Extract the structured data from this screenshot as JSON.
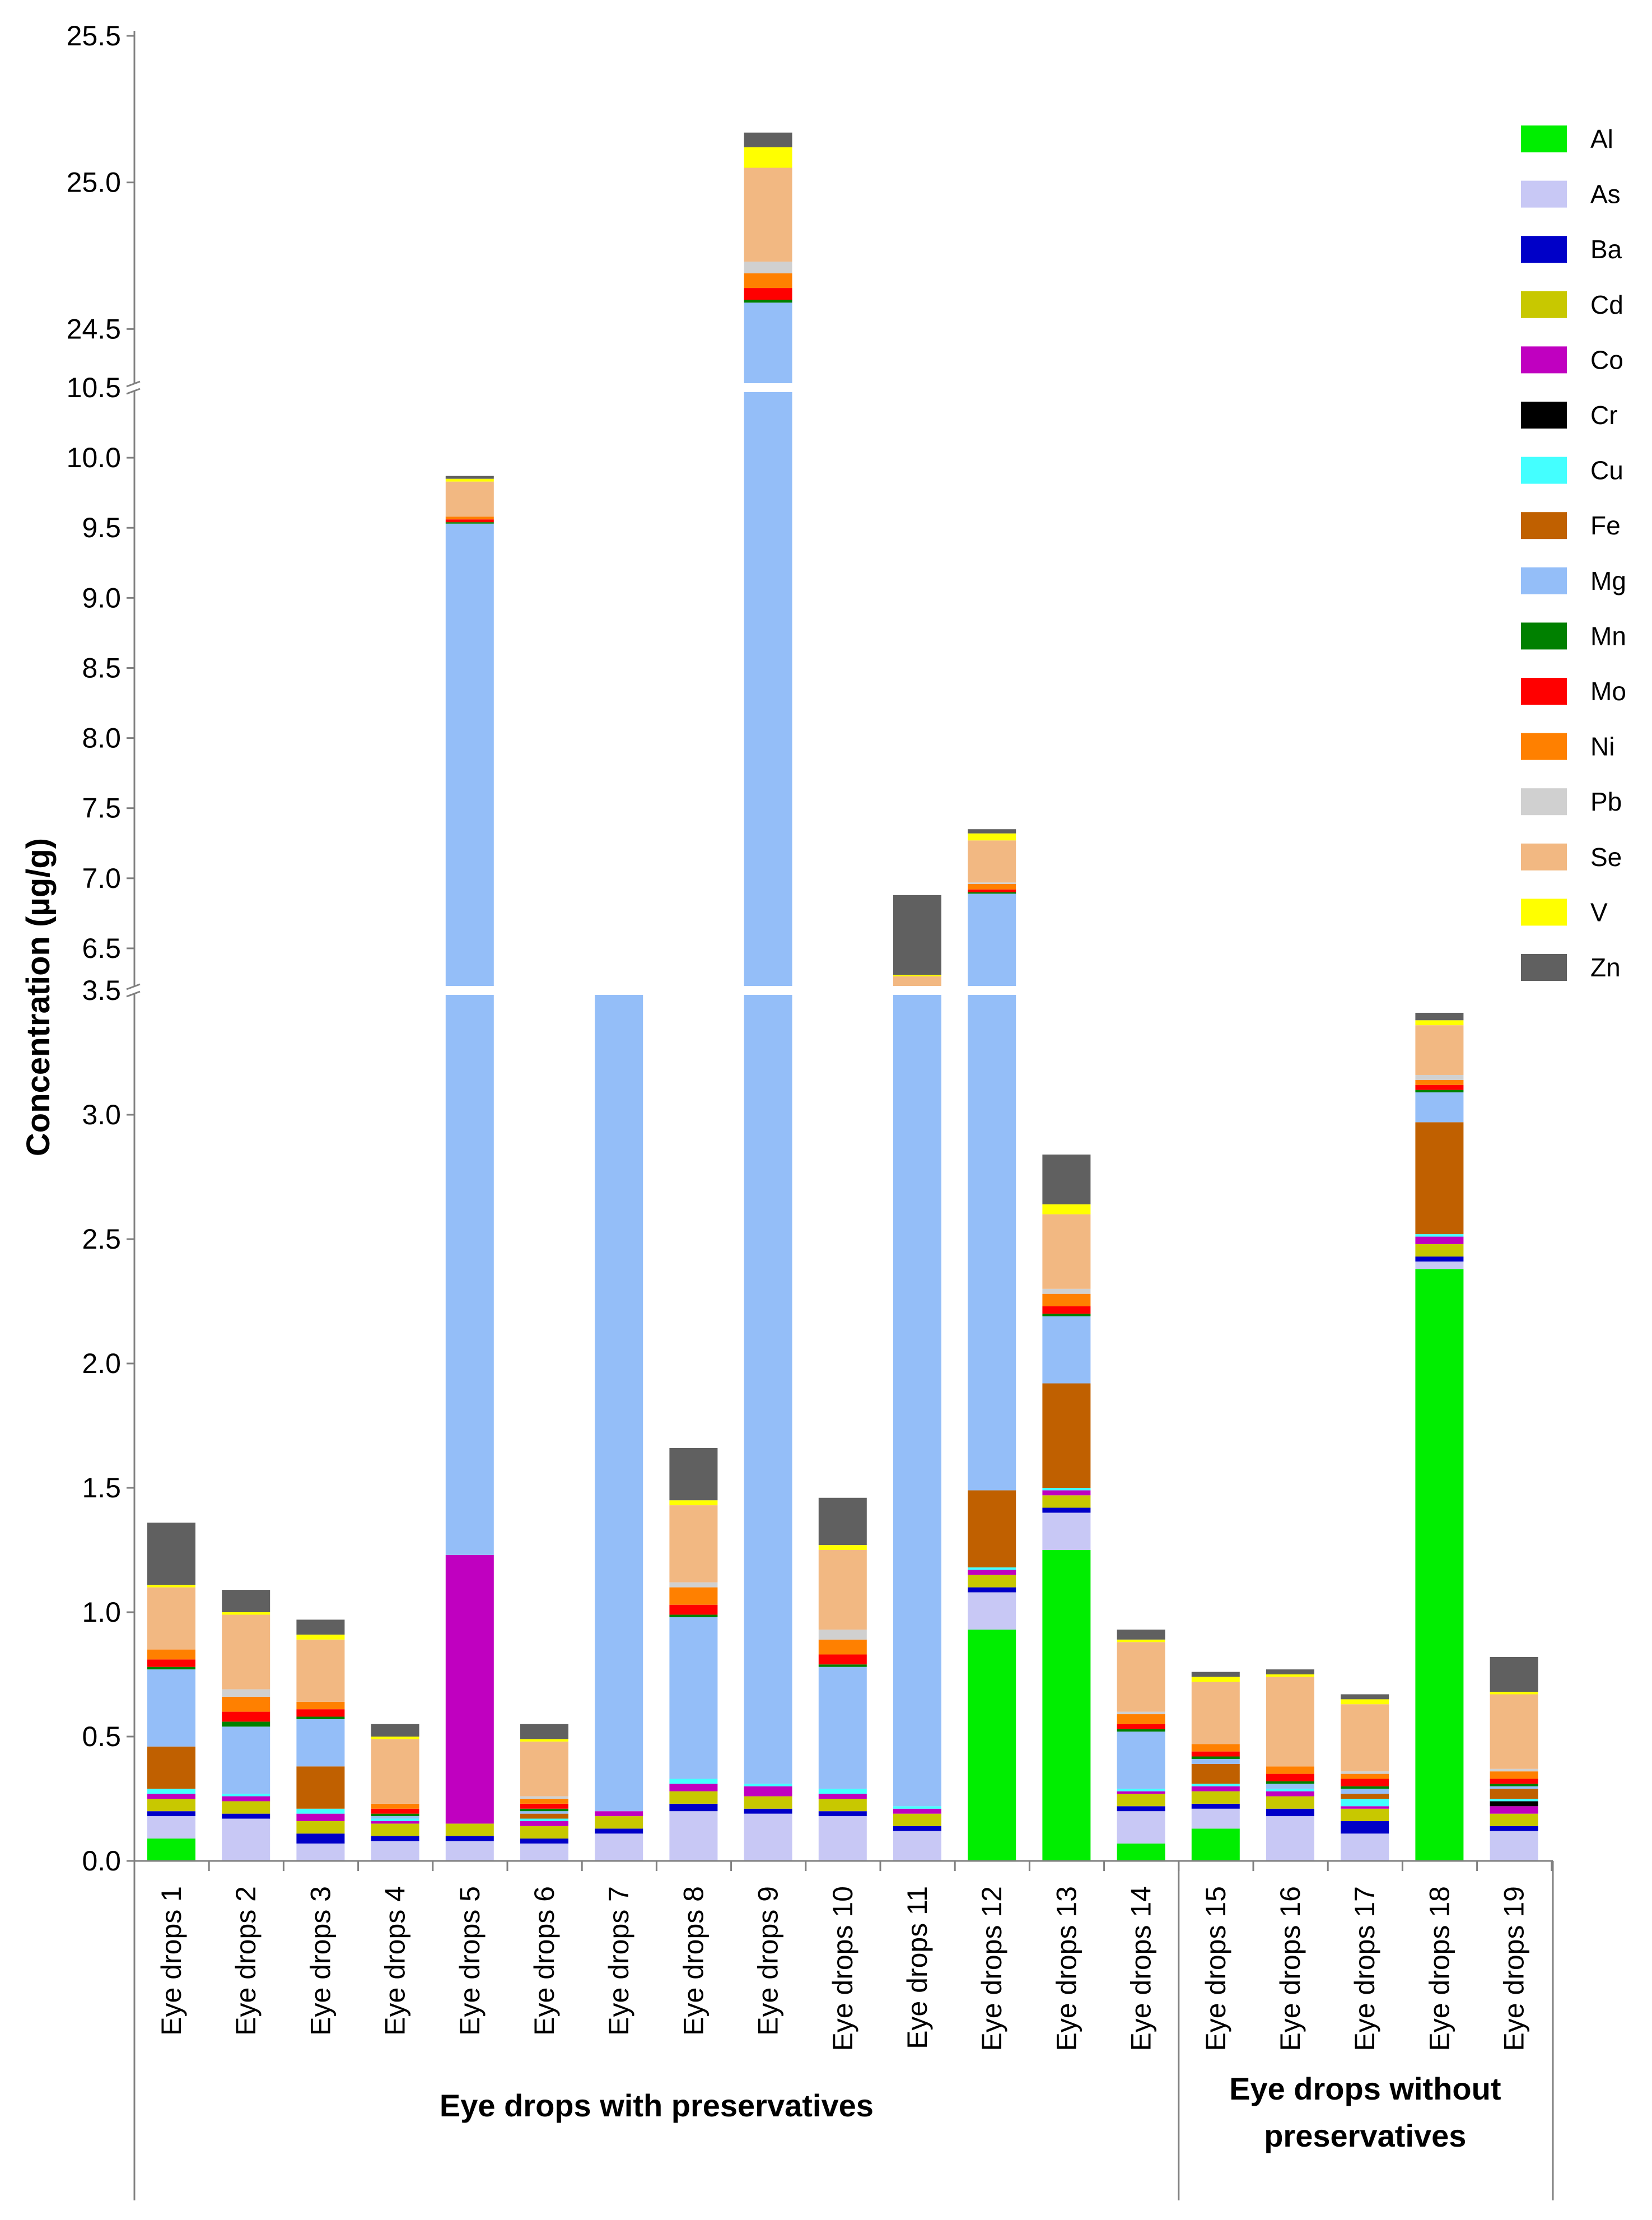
{
  "chart_data": {
    "type": "bar",
    "stacked": true,
    "ylabel": "Concentration (µg/g)",
    "ylim": [
      0,
      25.5
    ],
    "axis_breaks": [
      [
        3.5,
        6.2
      ],
      [
        10.5,
        24.3
      ]
    ],
    "y_ticks": [
      "0.0",
      "0.5",
      "1.0",
      "1.5",
      "2.0",
      "2.5",
      "3.0",
      "3.5",
      "6.5",
      "7.0",
      "7.5",
      "8.0",
      "8.5",
      "9.0",
      "9.5",
      "10.0",
      "10.5",
      "24.5",
      "25.0",
      "25.5"
    ],
    "categories": [
      "Eye drops 1",
      "Eye drops 2",
      "Eye drops 3",
      "Eye drops 4",
      "Eye drops 5",
      "Eye drops 6",
      "Eye drops 7",
      "Eye drops 8",
      "Eye drops 9",
      "Eye drops 10",
      "Eye drops 11",
      "Eye drops 12",
      "Eye drops 13",
      "Eye drops 14",
      "Eye drops 15",
      "Eye drops 16",
      "Eye drops 17",
      "Eye drops 18",
      "Eye drops 19"
    ],
    "groups": [
      {
        "label": "Eye drops with preservatives",
        "from": 0,
        "to": 13
      },
      {
        "label": "Eye drops without preservatives",
        "from": 14,
        "to": 18
      }
    ],
    "legend_position": "right",
    "series": [
      {
        "name": "Al",
        "color": "#00EE00",
        "values": [
          0.09,
          0,
          0,
          0,
          0,
          0,
          0,
          0,
          0,
          0,
          0,
          0.93,
          1.25,
          0.07,
          0.13,
          0,
          0,
          2.38,
          0
        ]
      },
      {
        "name": "As",
        "color": "#C8C8F5",
        "values": [
          0.09,
          0.17,
          0.07,
          0.08,
          0.08,
          0.07,
          0.11,
          0.2,
          0.19,
          0.18,
          0.12,
          0.15,
          0.15,
          0.13,
          0.08,
          0.18,
          0.11,
          0.03,
          0.12
        ]
      },
      {
        "name": "Ba",
        "color": "#0000C8",
        "values": [
          0.02,
          0.02,
          0.04,
          0.02,
          0.02,
          0.02,
          0.02,
          0.03,
          0.02,
          0.02,
          0.02,
          0.02,
          0.02,
          0.02,
          0.02,
          0.03,
          0.05,
          0.02,
          0.02
        ]
      },
      {
        "name": "Cd",
        "color": "#C8C800",
        "values": [
          0.05,
          0.05,
          0.05,
          0.05,
          0.05,
          0.05,
          0.05,
          0.05,
          0.05,
          0.05,
          0.05,
          0.05,
          0.05,
          0.05,
          0.05,
          0.05,
          0.05,
          0.05,
          0.05
        ]
      },
      {
        "name": "Co",
        "color": "#C000C0",
        "values": [
          0.02,
          0.02,
          0.03,
          0.01,
          1.08,
          0.02,
          0.02,
          0.03,
          0.04,
          0.02,
          0.02,
          0.02,
          0.02,
          0.01,
          0.02,
          0.02,
          0.01,
          0.03,
          0.03
        ]
      },
      {
        "name": "Cr",
        "color": "#000000",
        "values": [
          0,
          0,
          0,
          0,
          0,
          0,
          0,
          0,
          0,
          0,
          0,
          0,
          0,
          0,
          0,
          0,
          0,
          0,
          0.02
        ]
      },
      {
        "name": "Cu",
        "color": "#44FFFF",
        "values": [
          0.02,
          0.01,
          0.02,
          0.01,
          0,
          0.01,
          0,
          0.02,
          0.01,
          0.02,
          0.01,
          0.01,
          0.01,
          0.01,
          0.01,
          0.01,
          0.03,
          0.01,
          0.01
        ]
      },
      {
        "name": "Fe",
        "color": "#C06000",
        "values": [
          0.17,
          0,
          0.17,
          0,
          0,
          0.02,
          0,
          0,
          0,
          0,
          0,
          0.31,
          0.42,
          0,
          0.08,
          0,
          0.02,
          0.45,
          0.04
        ]
      },
      {
        "name": "Mg",
        "color": "#94BEF8",
        "values": [
          0.31,
          0.27,
          0.19,
          0.01,
          8.3,
          0.01,
          3.3,
          0.65,
          24.28,
          0.49,
          5.74,
          5.4,
          0.27,
          0.23,
          0.02,
          0.02,
          0.02,
          0.12,
          0.01
        ]
      },
      {
        "name": "Mn",
        "color": "#008000",
        "values": [
          0.01,
          0.02,
          0.01,
          0.01,
          0.01,
          0.01,
          0,
          0.01,
          0.01,
          0.01,
          0.01,
          0.01,
          0.01,
          0.01,
          0.01,
          0.01,
          0.01,
          0.01,
          0.01
        ]
      },
      {
        "name": "Mo",
        "color": "#FF0000",
        "values": [
          0.03,
          0.04,
          0.03,
          0.02,
          0.02,
          0.02,
          0,
          0.04,
          0.04,
          0.04,
          0.02,
          0.02,
          0.03,
          0.02,
          0.02,
          0.03,
          0.03,
          0.02,
          0.02
        ]
      },
      {
        "name": "Ni",
        "color": "#FF8000",
        "values": [
          0.04,
          0.06,
          0.03,
          0.02,
          0.02,
          0.02,
          0,
          0.07,
          0.05,
          0.06,
          0.02,
          0.04,
          0.05,
          0.04,
          0.03,
          0.03,
          0.02,
          0.02,
          0.03
        ]
      },
      {
        "name": "Pb",
        "color": "#D0D0D0",
        "values": [
          0,
          0.03,
          0,
          0,
          0,
          0.01,
          0,
          0.02,
          0.04,
          0.04,
          0.01,
          0.01,
          0.02,
          0.01,
          0,
          0,
          0.01,
          0.02,
          0.01
        ]
      },
      {
        "name": "Se",
        "color": "#F2B882",
        "values": [
          0.25,
          0.3,
          0.25,
          0.26,
          0.25,
          0.22,
          0,
          0.31,
          0.32,
          0.32,
          0.28,
          0.3,
          0.3,
          0.28,
          0.25,
          0.36,
          0.27,
          0.2,
          0.3
        ]
      },
      {
        "name": "V",
        "color": "#FFFF00",
        "values": [
          0.01,
          0.01,
          0.02,
          0.01,
          0.02,
          0.01,
          0,
          0.02,
          0.07,
          0.02,
          0.01,
          0.05,
          0.04,
          0.01,
          0.02,
          0.01,
          0.02,
          0.02,
          0.01
        ]
      },
      {
        "name": "Zn",
        "color": "#606060",
        "values": [
          0.25,
          0.09,
          0.06,
          0.05,
          0.02,
          0.06,
          0,
          0.21,
          0.05,
          0.19,
          0.57,
          0.03,
          0.2,
          0.04,
          0.02,
          0.02,
          0.02,
          0.03,
          0.14
        ]
      }
    ]
  }
}
